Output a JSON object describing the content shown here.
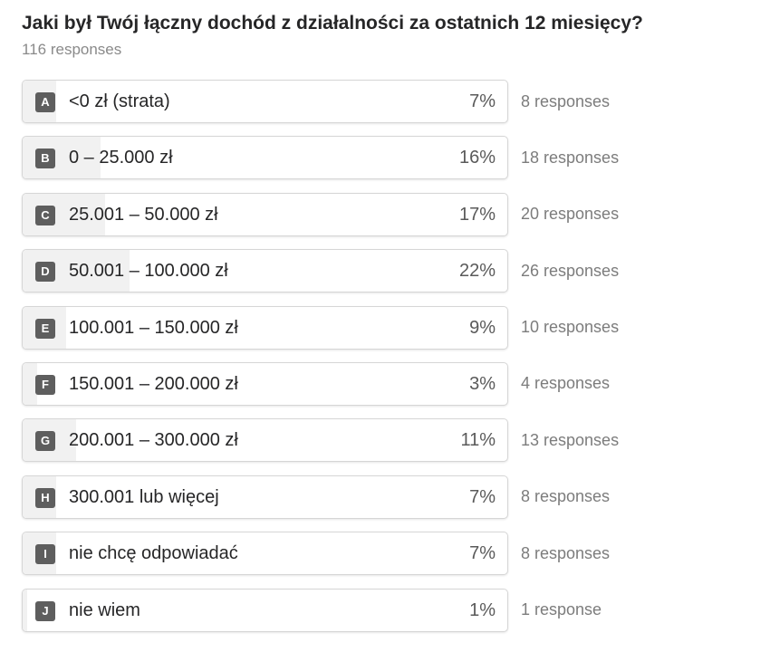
{
  "question": {
    "title": "Jaki był Twój łączny dochód z działalności za ostatnich 12 miesięcy?",
    "responses_total": "116 responses"
  },
  "options": [
    {
      "key": "A",
      "label": "<0 zł (strata)",
      "percent_text": "7%",
      "percent": 7,
      "responses": "8 responses"
    },
    {
      "key": "B",
      "label": "0 – 25.000 zł",
      "percent_text": "16%",
      "percent": 16,
      "responses": "18 responses"
    },
    {
      "key": "C",
      "label": "25.001 – 50.000 zł",
      "percent_text": "17%",
      "percent": 17,
      "responses": "20 responses"
    },
    {
      "key": "D",
      "label": "50.001 – 100.000 zł",
      "percent_text": "22%",
      "percent": 22,
      "responses": "26 responses"
    },
    {
      "key": "E",
      "label": "100.001 – 150.000 zł",
      "percent_text": "9%",
      "percent": 9,
      "responses": "10 responses"
    },
    {
      "key": "F",
      "label": "150.001 – 200.000 zł",
      "percent_text": "3%",
      "percent": 3,
      "responses": "4 responses"
    },
    {
      "key": "G",
      "label": "200.001 – 300.000 zł",
      "percent_text": "11%",
      "percent": 11,
      "responses": "13 responses"
    },
    {
      "key": "H",
      "label": "300.001 lub więcej",
      "percent_text": "7%",
      "percent": 7,
      "responses": "8 responses"
    },
    {
      "key": "I",
      "label": "nie chcę odpowiadać",
      "percent_text": "7%",
      "percent": 7,
      "responses": "8 responses"
    },
    {
      "key": "J",
      "label": "nie wiem",
      "percent_text": "1%",
      "percent": 1,
      "responses": "1 response"
    }
  ],
  "colors": {
    "key_badge": "#5e5e5e",
    "bar_fill": "#f1f1f1",
    "border": "#d6d6d6",
    "text": "#262627",
    "muted": "#7c7c7c"
  }
}
